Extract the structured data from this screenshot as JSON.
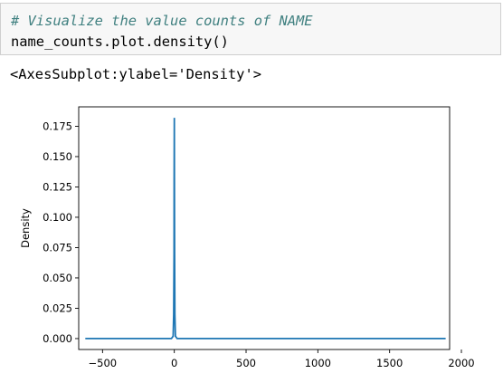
{
  "code_cell": {
    "comment": "# Visualize the value counts of NAME",
    "code": "name_counts.plot.density()"
  },
  "output": {
    "repr": "<AxesSubplot:ylabel='Density'>"
  },
  "chart_data": {
    "type": "line",
    "title": "",
    "xlabel": "",
    "ylabel": "Density",
    "xlim": [
      -666,
      1918
    ],
    "ylim": [
      -0.009,
      0.191
    ],
    "xticks": [
      -500,
      0,
      500,
      1000,
      1500,
      2000
    ],
    "xtick_labels": [
      "−500",
      "0",
      "500",
      "1000",
      "1500",
      "2000"
    ],
    "yticks": [
      0.0,
      0.025,
      0.05,
      0.075,
      0.1,
      0.125,
      0.15,
      0.175
    ],
    "ytick_labels": [
      "0.000",
      "0.025",
      "0.050",
      "0.075",
      "0.100",
      "0.125",
      "0.150",
      "0.175"
    ],
    "grid": false,
    "series": [
      {
        "color": "#1f77b4",
        "x": [
          -620,
          -100,
          -20,
          -8,
          -4,
          -2,
          -1,
          0,
          1,
          2,
          4,
          8,
          20,
          100,
          1000,
          1890
        ],
        "y": [
          0.0,
          0.0,
          0.0,
          0.002,
          0.02,
          0.07,
          0.13,
          0.182,
          0.13,
          0.07,
          0.02,
          0.002,
          0.0,
          0.0,
          0.0,
          0.0
        ]
      }
    ]
  }
}
